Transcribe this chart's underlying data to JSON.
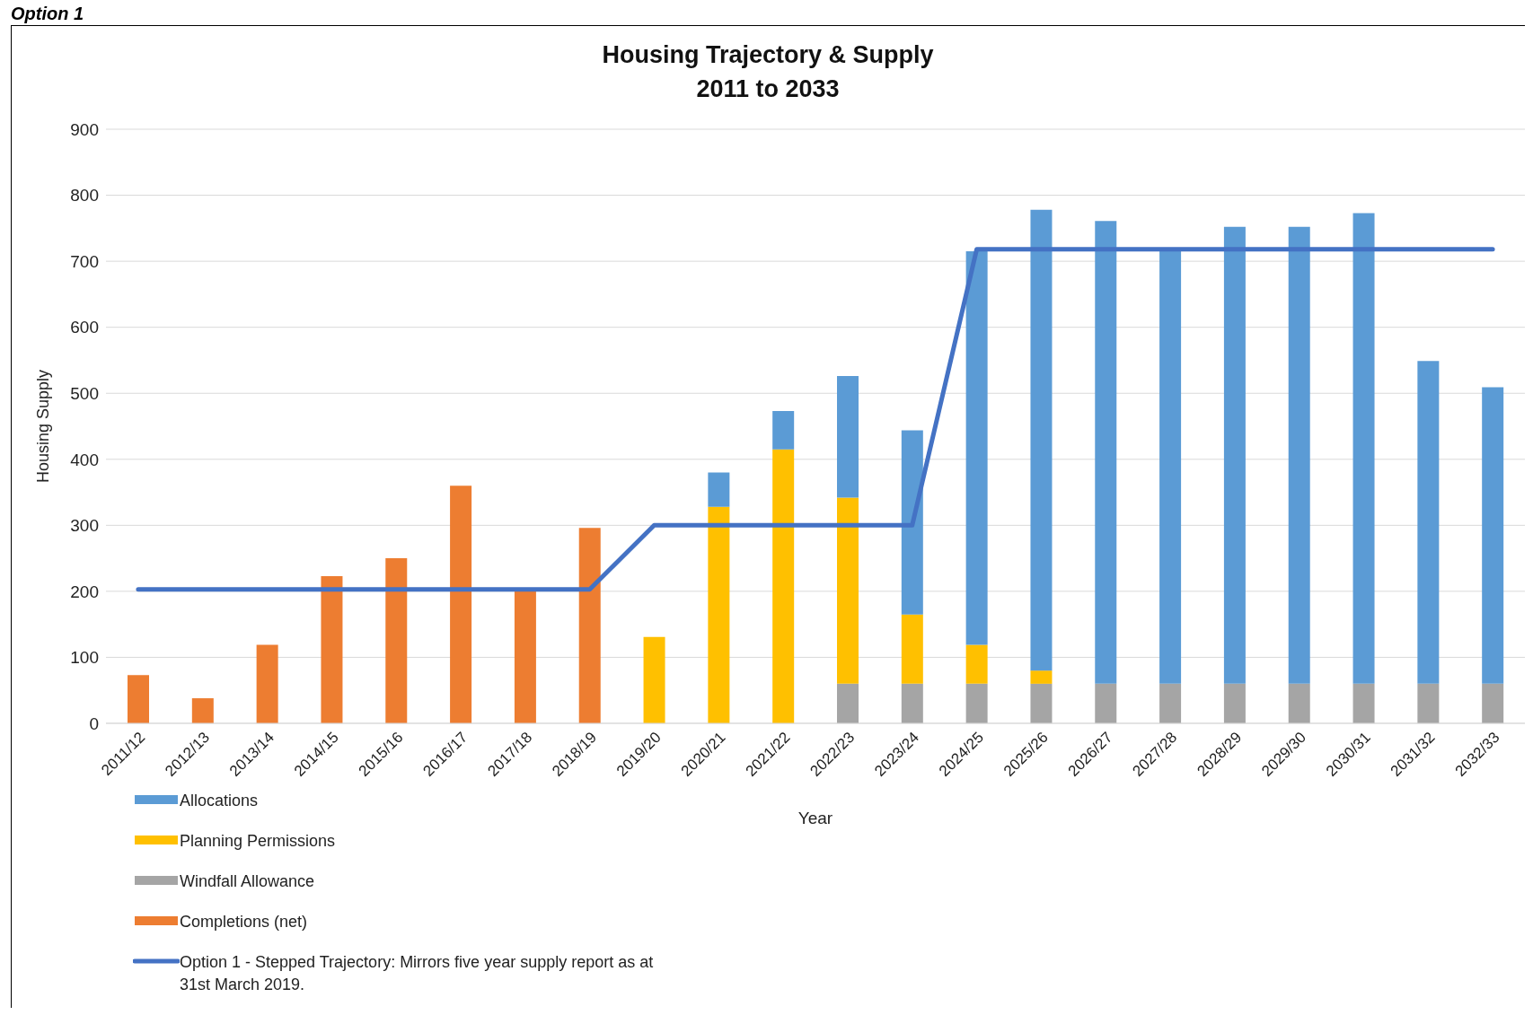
{
  "chart_data": {
    "type": "bar",
    "title": "Housing Trajectory & Supply\n2011 to 2033",
    "xlabel": "Year",
    "ylabel": "Housing Supply",
    "annotations": [
      "Option 1"
    ],
    "categories": [
      "2011/12",
      "2012/13",
      "2013/14",
      "2014/15",
      "2015/16",
      "2016/17",
      "2017/18",
      "2018/19",
      "2019/20",
      "2020/21",
      "2021/22",
      "2022/23",
      "2023/24",
      "2024/25",
      "2025/26",
      "2026/27",
      "2027/28",
      "2028/29",
      "2029/30",
      "2030/31",
      "2031/32",
      "2032/33"
    ],
    "stacked": true,
    "series": [
      {
        "name": "Completions (net)",
        "color": "#ed7d31",
        "values": [
          73,
          38,
          119,
          223,
          250,
          360,
          200,
          296,
          null,
          null,
          null,
          null,
          null,
          null,
          null,
          null,
          null,
          null,
          null,
          null,
          null,
          null
        ]
      },
      {
        "name": "Windfall Allowance",
        "color": "#a5a5a5",
        "values": [
          null,
          null,
          null,
          null,
          null,
          null,
          null,
          null,
          null,
          null,
          null,
          60,
          60,
          60,
          60,
          60,
          60,
          60,
          60,
          60,
          60,
          60
        ]
      },
      {
        "name": "Planning Permissions",
        "color": "#ffc000",
        "values": [
          null,
          null,
          null,
          null,
          null,
          null,
          null,
          null,
          131,
          328,
          415,
          282,
          105,
          59,
          20,
          null,
          null,
          null,
          null,
          null,
          null,
          null
        ]
      },
      {
        "name": "Allocations",
        "color": "#5b9bd5",
        "values": [
          null,
          null,
          null,
          null,
          null,
          null,
          null,
          null,
          null,
          52,
          58,
          184,
          279,
          596,
          698,
          701,
          658,
          692,
          692,
          713,
          489,
          449
        ]
      },
      {
        "name": "Option 1 - Stepped Trajectory:  Mirrors five year supply report as at 31st March 2019.",
        "type": "line",
        "color": "#4472c4",
        "values": [
          203,
          203,
          203,
          203,
          203,
          203,
          203,
          203,
          300,
          300,
          300,
          300,
          300,
          718,
          718,
          718,
          718,
          718,
          718,
          718,
          718,
          718
        ]
      }
    ],
    "ylim": [
      0,
      900
    ],
    "yticks": [
      0,
      100,
      200,
      300,
      400,
      500,
      600,
      700,
      800,
      900
    ],
    "grid": "y",
    "legend": "bottom left",
    "marker": "none",
    "line_style": "solid"
  }
}
